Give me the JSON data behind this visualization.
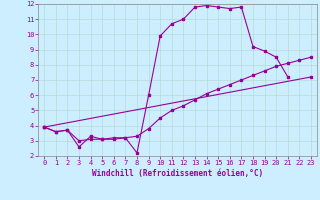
{
  "xlabel": "Windchill (Refroidissement éolien,°C)",
  "background_color": "#cceeff",
  "line_color": "#990099",
  "grid_color": "#b0d8cc",
  "xlim": [
    -0.5,
    23.5
  ],
  "ylim": [
    2,
    12
  ],
  "xticks": [
    0,
    1,
    2,
    3,
    4,
    5,
    6,
    7,
    8,
    9,
    10,
    11,
    12,
    13,
    14,
    15,
    16,
    17,
    18,
    19,
    20,
    21,
    22,
    23
  ],
  "yticks": [
    2,
    3,
    4,
    5,
    6,
    7,
    8,
    9,
    10,
    11,
    12
  ],
  "line1_x": [
    0,
    1,
    2,
    3,
    4,
    5,
    6,
    7,
    8,
    9,
    10,
    11,
    12,
    13,
    14,
    15,
    16,
    17,
    18,
    19,
    20,
    21
  ],
  "line1_y": [
    3.9,
    3.6,
    3.7,
    2.6,
    3.3,
    3.1,
    3.1,
    3.2,
    2.2,
    6.0,
    9.9,
    10.7,
    11.0,
    11.8,
    11.9,
    11.8,
    11.7,
    11.8,
    9.2,
    8.9,
    8.5,
    7.2
  ],
  "line2_x": [
    0,
    23
  ],
  "line2_y": [
    3.9,
    7.2
  ],
  "line3_x": [
    0,
    1,
    2,
    3,
    4,
    5,
    6,
    7,
    8,
    9,
    10,
    11,
    12,
    13,
    14,
    15,
    16,
    17,
    18,
    19,
    20,
    21,
    22,
    23
  ],
  "line3_y": [
    3.9,
    3.6,
    3.7,
    3.0,
    3.1,
    3.1,
    3.2,
    3.2,
    3.3,
    3.8,
    4.5,
    5.0,
    5.3,
    5.7,
    6.1,
    6.4,
    6.7,
    7.0,
    7.3,
    7.6,
    7.9,
    8.1,
    8.3,
    8.5
  ],
  "xlabel_fontsize": 5.5,
  "tick_fontsize": 5
}
